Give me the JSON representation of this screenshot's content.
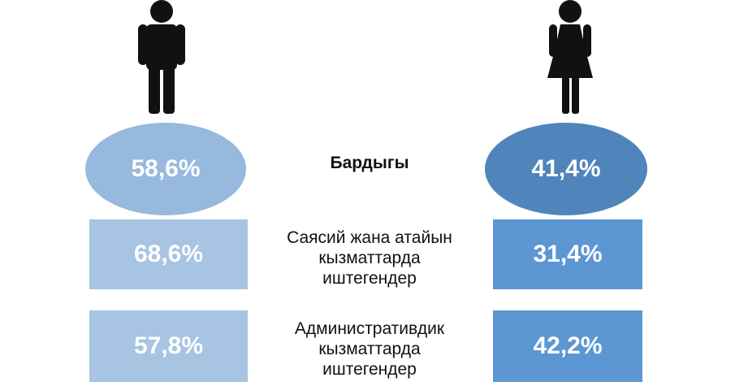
{
  "colors": {
    "men_light": "#a7c4e2",
    "men_total": "#96b9dd",
    "women_total": "#4f85bb",
    "women_bar": "#5c96d3",
    "icon": "#111111"
  },
  "icons": {
    "men": "man-icon",
    "women": "woman-icon"
  },
  "rows": [
    {
      "label_lines": [
        "Бардыгы"
      ],
      "men": "58,6%",
      "women": "41,4%"
    },
    {
      "label_lines": [
        "Саясий жана атайын",
        "кызматтарда",
        "иштегендер"
      ],
      "men": "68,6%",
      "women": "31,4%"
    },
    {
      "label_lines": [
        "Административдик",
        "кызматтарда",
        "иштегендер"
      ],
      "men": "57,8%",
      "women": "42,2%"
    }
  ],
  "chart_data": {
    "type": "table",
    "categories": [
      "Бардыгы",
      "Саясий жана атайын кызматтарда иштегендер",
      "Административдик кызматтарда иштегендер"
    ],
    "series": [
      {
        "values": [
          58.6,
          68.6,
          57.8
        ]
      },
      {
        "values": [
          41.4,
          31.4,
          42.2
        ]
      }
    ]
  }
}
